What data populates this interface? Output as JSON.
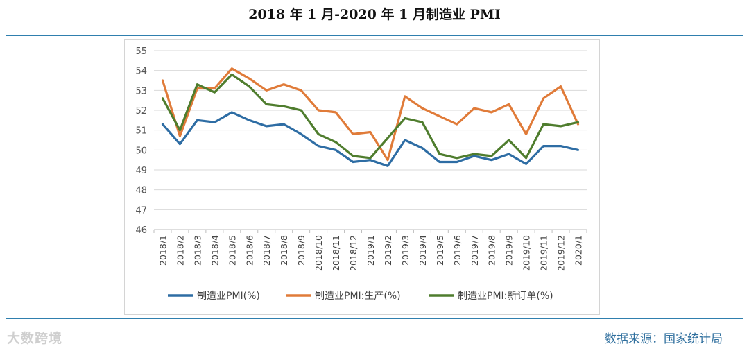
{
  "title": "2018 年 1 月-2020 年 1 月制造业 PMI",
  "source": "数据来源：国家统计局",
  "watermark": "大数跨境",
  "chart_data": {
    "type": "line",
    "ylim": [
      46,
      55
    ],
    "yticks": [
      46,
      47,
      48,
      49,
      50,
      51,
      52,
      53,
      54,
      55
    ],
    "grid": true,
    "legend_position": "bottom",
    "categories": [
      "2018/1",
      "2018/2",
      "2018/3",
      "2018/4",
      "2018/5",
      "2018/6",
      "2018/7",
      "2018/8",
      "2018/9",
      "2018/10",
      "2018/11",
      "2018/12",
      "2019/1",
      "2019/2",
      "2019/3",
      "2019/4",
      "2019/5",
      "2019/6",
      "2019/7",
      "2019/8",
      "2019/9",
      "2019/10",
      "2019/11",
      "2019/12",
      "2020/1"
    ],
    "series": [
      {
        "name": "制造业PMI(%)",
        "color": "#2e6da4",
        "values": [
          51.3,
          50.3,
          51.5,
          51.4,
          51.9,
          51.5,
          51.2,
          51.3,
          50.8,
          50.2,
          50.0,
          49.4,
          49.5,
          49.2,
          50.5,
          50.1,
          49.4,
          49.4,
          49.7,
          49.5,
          49.8,
          49.3,
          50.2,
          50.2,
          50.0
        ]
      },
      {
        "name": "制造业PMI:生产(%)",
        "color": "#e07b39",
        "values": [
          53.5,
          50.7,
          53.1,
          53.1,
          54.1,
          53.6,
          53.0,
          53.3,
          53.0,
          52.0,
          51.9,
          50.8,
          50.9,
          49.5,
          52.7,
          52.1,
          51.7,
          51.3,
          52.1,
          51.9,
          52.3,
          50.8,
          52.6,
          53.2,
          51.3
        ]
      },
      {
        "name": "制造业PMI:新订单(%)",
        "color": "#4f7d2e",
        "values": [
          52.6,
          51.0,
          53.3,
          52.9,
          53.8,
          53.2,
          52.3,
          52.2,
          52.0,
          50.8,
          50.4,
          49.7,
          49.6,
          50.6,
          51.6,
          51.4,
          49.8,
          49.6,
          49.8,
          49.7,
          50.5,
          49.6,
          51.3,
          51.2,
          51.4
        ]
      }
    ]
  }
}
